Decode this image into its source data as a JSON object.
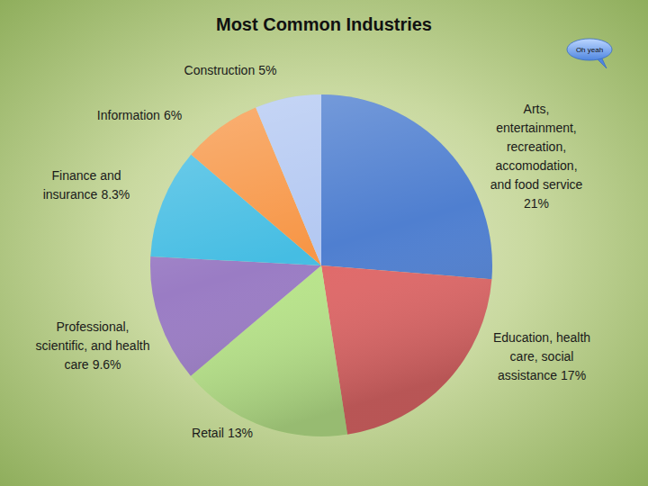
{
  "chart_data": {
    "type": "pie",
    "title": "Most Common Industries",
    "annotation": "Oh yeah",
    "categories": [
      "Arts, entertainment, recreation, accomodation, and food service",
      "Education, health care, social assistance",
      "Retail",
      "Professional, scientific, and health care",
      "Finance and insurance",
      "Information",
      "Construction"
    ],
    "values": [
      21,
      17,
      13,
      9.6,
      8.3,
      6,
      5
    ],
    "value_labels": [
      "21%",
      "17%",
      "13%",
      "9.6%",
      "8.3%",
      "6%",
      "5%"
    ],
    "colors": [
      "#4f7fd0",
      "#e06868",
      "#b8e48a",
      "#9a7cc4",
      "#45bde3",
      "#f79646",
      "#b3c8f2"
    ],
    "data_labels": true
  }
}
